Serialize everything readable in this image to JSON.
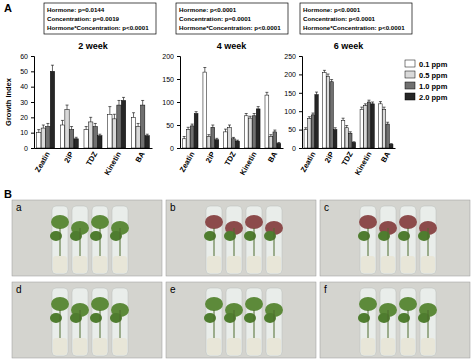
{
  "figure": {
    "panel_labels": [
      "A",
      "B"
    ],
    "photo_labels": [
      "a",
      "b",
      "c",
      "d",
      "e",
      "f"
    ]
  },
  "chart_data": [
    {
      "type": "bar",
      "title": "2 week",
      "ylabel": "Growth Index",
      "annotations": [
        "Hormone: p=0.0144",
        "Concentration: p=0.0019",
        "Hormone*Concentration: p<0.0001"
      ],
      "categories": [
        "Zeatin",
        "2iP",
        "TDZ",
        "Kinetin",
        "BA"
      ],
      "series": [
        {
          "color": "#ffffff",
          "values": [
            10,
            15,
            12,
            22,
            20
          ],
          "errors": [
            2,
            3,
            2,
            5,
            3
          ]
        },
        {
          "color": "#d9d9d9",
          "values": [
            13,
            25,
            17,
            19,
            14
          ],
          "errors": [
            2,
            3,
            3,
            3,
            2
          ]
        },
        {
          "color": "#707070",
          "values": [
            14,
            12,
            14,
            28,
            28
          ],
          "errors": [
            2,
            2,
            2,
            3,
            3
          ]
        },
        {
          "color": "#262626",
          "values": [
            50,
            6,
            8,
            31,
            8
          ],
          "errors": [
            4,
            1,
            1,
            2,
            1
          ]
        }
      ],
      "ylim": [
        0,
        60
      ],
      "yticks": [
        0,
        10,
        20,
        30,
        40,
        50,
        60
      ]
    },
    {
      "type": "bar",
      "title": "4 week",
      "annotations": [
        "Hormone: p<0.0001",
        "Concentration: p=0.0001",
        "Hormone*Concentration: p<0.0001"
      ],
      "categories": [
        "Zeatin",
        "2iP",
        "TDZ",
        "Kinetin",
        "BA"
      ],
      "series": [
        {
          "color": "#ffffff",
          "values": [
            20,
            165,
            35,
            70,
            115
          ],
          "errors": [
            5,
            10,
            6,
            5,
            6
          ]
        },
        {
          "color": "#d9d9d9",
          "values": [
            40,
            25,
            45,
            65,
            25
          ],
          "errors": [
            5,
            4,
            5,
            4,
            4
          ]
        },
        {
          "color": "#707070",
          "values": [
            48,
            45,
            20,
            70,
            35
          ],
          "errors": [
            4,
            5,
            3,
            5,
            4
          ]
        },
        {
          "color": "#262626",
          "values": [
            75,
            18,
            15,
            85,
            10
          ],
          "errors": [
            4,
            3,
            2,
            5,
            2
          ]
        }
      ],
      "ylim": [
        0,
        200
      ],
      "yticks": [
        0,
        50,
        100,
        150,
        200
      ]
    },
    {
      "type": "bar",
      "title": "6 week",
      "legend": "right",
      "annotations": [
        "Hormone: p<0.0001",
        "Concentration: p<0.0001",
        "Hormone*Concentration: p<0.0001"
      ],
      "categories": [
        "Zeatin",
        "2iP",
        "TDZ",
        "Kinetin",
        "BA"
      ],
      "series": [
        {
          "name": "0.1 ppm",
          "color": "#ffffff",
          "values": [
            50,
            205,
            75,
            105,
            120
          ],
          "errors": [
            5,
            6,
            6,
            6,
            6
          ]
        },
        {
          "name": "0.5 ppm",
          "color": "#d9d9d9",
          "values": [
            80,
            195,
            55,
            115,
            105
          ],
          "errors": [
            5,
            6,
            6,
            5,
            6
          ]
        },
        {
          "name": "1.0 ppm",
          "color": "#707070",
          "values": [
            90,
            180,
            40,
            125,
            65
          ],
          "errors": [
            5,
            6,
            4,
            5,
            5
          ]
        },
        {
          "name": "2.0 ppm",
          "color": "#262626",
          "values": [
            145,
            50,
            15,
            120,
            10
          ],
          "errors": [
            7,
            5,
            2,
            5,
            2
          ]
        }
      ],
      "ylim": [
        0,
        250
      ],
      "yticks": [
        0,
        50,
        100,
        150,
        200,
        250
      ]
    }
  ]
}
